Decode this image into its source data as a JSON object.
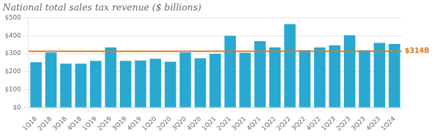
{
  "chart_data": {
    "type": "bar",
    "title": "National total sales tax revenue ($ billions)",
    "categories": [
      "1Q18",
      "2Q18",
      "3Q18",
      "4Q18",
      "1Q19",
      "2Q19",
      "3Q19",
      "4Q19",
      "1Q20",
      "2Q20",
      "3Q20",
      "4Q20",
      "1Q21",
      "2Q21",
      "3Q21",
      "4Q21",
      "1Q22",
      "2Q22",
      "3Q22",
      "4Q22",
      "1Q23",
      "2Q23",
      "3Q23",
      "4Q23",
      "1Q24"
    ],
    "values": [
      253,
      307,
      245,
      245,
      260,
      335,
      260,
      262,
      272,
      255,
      307,
      275,
      300,
      400,
      305,
      370,
      335,
      465,
      320,
      335,
      347,
      403,
      320,
      360,
      355
    ],
    "color": "#29A8D1",
    "ylim": [
      0,
      500
    ],
    "yticks": [
      {
        "value": 0,
        "label": "$0"
      },
      {
        "value": 100,
        "label": "$100"
      },
      {
        "value": 200,
        "label": "$200"
      },
      {
        "value": 300,
        "label": "$300"
      },
      {
        "value": 400,
        "label": "$400"
      },
      {
        "value": 500,
        "label": "$500"
      }
    ],
    "grid": true,
    "annotations": [
      {
        "y": 314,
        "label": "$314B",
        "color": "#E07820"
      }
    ]
  }
}
